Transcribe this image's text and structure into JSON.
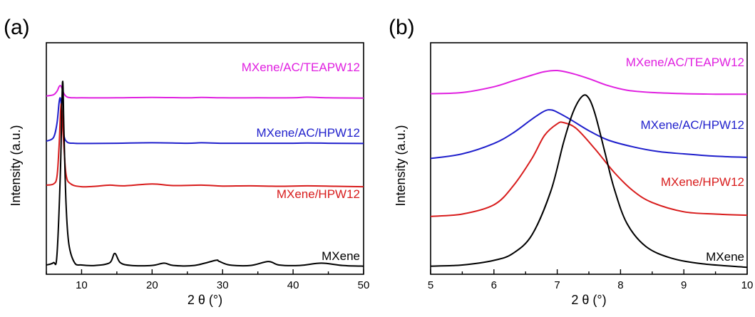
{
  "chart_data": [
    {
      "type": "line",
      "panel_label": "(a)",
      "xlabel": "2 θ (°)",
      "ylabel": "Intensity (a.u.)",
      "xlim": [
        5,
        50
      ],
      "x_ticks": [
        10,
        20,
        30,
        40,
        50
      ],
      "y_ticks_labeled": false,
      "series": [
        {
          "name": "MXene/AC/TEAPW12",
          "color": "#e020e0",
          "x": [
            5,
            6,
            6.5,
            6.8,
            7.0,
            7.2,
            7.5,
            8,
            9,
            10,
            15,
            20,
            25,
            27,
            30,
            35,
            40,
            42,
            45,
            50
          ],
          "y": [
            0.77,
            0.775,
            0.79,
            0.81,
            0.815,
            0.805,
            0.78,
            0.765,
            0.762,
            0.762,
            0.762,
            0.764,
            0.762,
            0.764,
            0.762,
            0.762,
            0.762,
            0.765,
            0.762,
            0.761
          ]
        },
        {
          "name": "MXene/AC/HPW12",
          "color": "#1f1fcc",
          "x": [
            5,
            6,
            6.5,
            6.8,
            7.0,
            7.2,
            7.5,
            8,
            9,
            10,
            15,
            20,
            25,
            27,
            30,
            35,
            40,
            42,
            45,
            50
          ],
          "y": [
            0.575,
            0.59,
            0.65,
            0.74,
            0.76,
            0.7,
            0.6,
            0.57,
            0.566,
            0.565,
            0.566,
            0.568,
            0.566,
            0.568,
            0.566,
            0.566,
            0.566,
            0.567,
            0.566,
            0.565
          ]
        },
        {
          "name": "MXene/HPW12",
          "color": "#d81c1c",
          "x": [
            5,
            6,
            6.5,
            6.8,
            7.1,
            7.4,
            7.8,
            8.5,
            10,
            12,
            14,
            16,
            20,
            23,
            27,
            30,
            34,
            38,
            42,
            46,
            50
          ],
          "y": [
            0.385,
            0.39,
            0.42,
            0.55,
            0.735,
            0.6,
            0.43,
            0.39,
            0.378,
            0.38,
            0.385,
            0.382,
            0.39,
            0.383,
            0.385,
            0.381,
            0.382,
            0.38,
            0.382,
            0.38,
            0.378
          ]
        },
        {
          "name": "MXene",
          "color": "#000000",
          "x": [
            5,
            6,
            6.5,
            7.0,
            7.3,
            7.5,
            7.8,
            8.2,
            9,
            10,
            12,
            14,
            14.7,
            15.5,
            17,
            20,
            21.7,
            23,
            26,
            29,
            29.5,
            31,
            34,
            36.5,
            38,
            41,
            44,
            47,
            50
          ],
          "y": [
            0.04,
            0.05,
            0.08,
            0.45,
            0.83,
            0.62,
            0.3,
            0.13,
            0.05,
            0.04,
            0.038,
            0.05,
            0.09,
            0.05,
            0.038,
            0.038,
            0.048,
            0.038,
            0.038,
            0.06,
            0.056,
            0.04,
            0.038,
            0.055,
            0.04,
            0.038,
            0.048,
            0.038,
            0.035
          ]
        }
      ]
    },
    {
      "type": "line",
      "panel_label": "(b)",
      "xlabel": "2 θ (°)",
      "ylabel": "Intensity (a.u.)",
      "xlim": [
        5,
        10
      ],
      "x_ticks": [
        5,
        6,
        7,
        8,
        9,
        10
      ],
      "y_ticks_labeled": false,
      "series": [
        {
          "name": "MXene/AC/TEAPW12",
          "color": "#e020e0",
          "x": [
            5,
            5.5,
            6,
            6.3,
            6.6,
            6.8,
            7.0,
            7.2,
            7.5,
            7.8,
            8.1,
            8.5,
            9,
            9.5,
            10
          ],
          "y": [
            0.78,
            0.785,
            0.81,
            0.835,
            0.86,
            0.875,
            0.88,
            0.87,
            0.845,
            0.815,
            0.795,
            0.785,
            0.78,
            0.778,
            0.778
          ]
        },
        {
          "name": "MXene/AC/HPW12",
          "color": "#1f1fcc",
          "x": [
            5,
            5.5,
            6,
            6.3,
            6.6,
            6.8,
            6.9,
            7.0,
            7.2,
            7.5,
            7.8,
            8.2,
            8.6,
            9,
            9.5,
            10
          ],
          "y": [
            0.5,
            0.52,
            0.565,
            0.61,
            0.67,
            0.705,
            0.71,
            0.7,
            0.67,
            0.62,
            0.58,
            0.55,
            0.53,
            0.52,
            0.51,
            0.505
          ]
        },
        {
          "name": "MXene/HPW12",
          "color": "#d81c1c",
          "x": [
            5,
            5.5,
            6,
            6.3,
            6.6,
            6.8,
            7.0,
            7.1,
            7.3,
            7.6,
            7.9,
            8.2,
            8.5,
            9,
            9.5,
            10
          ],
          "y": [
            0.25,
            0.26,
            0.3,
            0.38,
            0.5,
            0.6,
            0.65,
            0.655,
            0.63,
            0.54,
            0.44,
            0.36,
            0.31,
            0.27,
            0.26,
            0.255
          ]
        },
        {
          "name": "MXene",
          "color": "#000000",
          "x": [
            5,
            5.5,
            6,
            6.3,
            6.6,
            6.9,
            7.1,
            7.25,
            7.4,
            7.5,
            7.6,
            7.75,
            7.9,
            8.1,
            8.4,
            8.8,
            9.3,
            10
          ],
          "y": [
            0.035,
            0.04,
            0.06,
            0.09,
            0.17,
            0.36,
            0.57,
            0.7,
            0.77,
            0.76,
            0.69,
            0.53,
            0.37,
            0.22,
            0.12,
            0.07,
            0.045,
            0.03
          ]
        }
      ]
    }
  ]
}
